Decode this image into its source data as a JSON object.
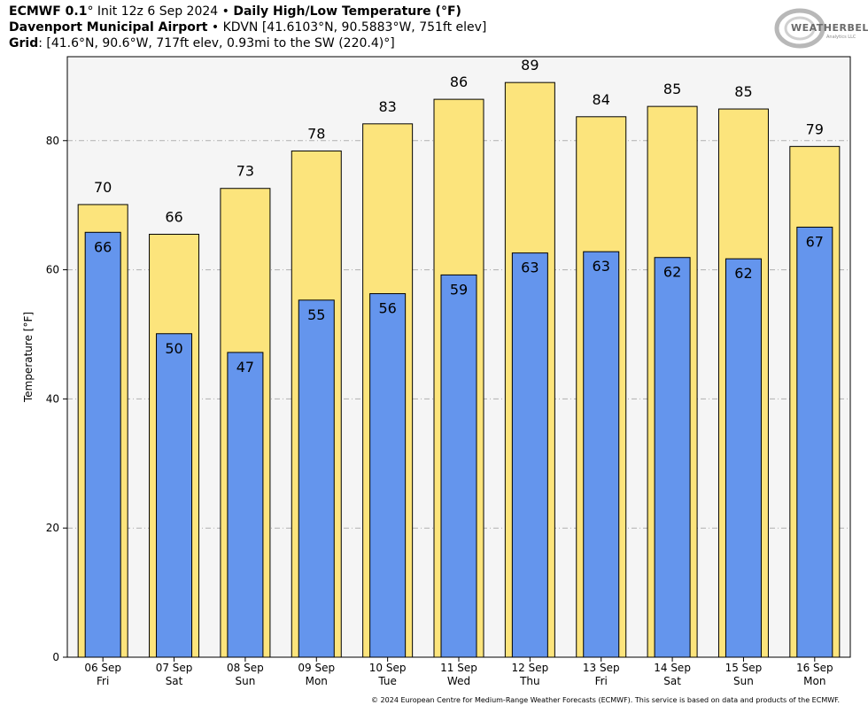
{
  "header": {
    "line1_model": "ECMWF 0.1",
    "line1_deg": "°",
    "line1_init": " Init 12z 6 Sep 2024 • ",
    "line1_title": "Daily High/Low Temperature (°F)",
    "line2_station": "Davenport Municipal Airport",
    "line2_rest": " • KDVN [41.6103°N, 90.5883°W, 751ft elev]",
    "line3_grid": "Grid",
    "line3_rest": ": [41.6°N, 90.6°W, 717ft elev, 0.93mi to the SW (220.4)°]"
  },
  "logo": {
    "text": "WEATHERBELL",
    "subtext": "Analytics LLC",
    "icon": "weatherbell-swirl-logo"
  },
  "copyright": "© 2024 European Centre for Medium-Range Weather Forecasts (ECMWF). This service is based on data and products of the ECMWF.",
  "chart_data": {
    "type": "bar",
    "ylabel": "Temperature [°F]",
    "ylim": [
      0,
      93
    ],
    "yticks": [
      0,
      20,
      40,
      60,
      80
    ],
    "grid": true,
    "categories": [
      "06 Sep",
      "07 Sep",
      "08 Sep",
      "09 Sep",
      "10 Sep",
      "11 Sep",
      "12 Sep",
      "13 Sep",
      "14 Sep",
      "15 Sep",
      "16 Sep"
    ],
    "weekdays": [
      "Fri",
      "Sat",
      "Sun",
      "Mon",
      "Tue",
      "Wed",
      "Thu",
      "Fri",
      "Sat",
      "Sun",
      "Mon"
    ],
    "series": [
      {
        "key": "high",
        "values": [
          70.1,
          65.5,
          72.6,
          78.4,
          82.6,
          86.4,
          89.0,
          83.7,
          85.3,
          84.9,
          79.1
        ],
        "labels": [
          "70",
          "66",
          "73",
          "78",
          "83",
          "86",
          "89",
          "84",
          "85",
          "85",
          "79"
        ],
        "color": "#fce47c"
      },
      {
        "key": "low",
        "values": [
          65.8,
          50.1,
          47.2,
          55.3,
          56.3,
          59.2,
          62.6,
          62.8,
          61.9,
          61.7,
          66.6
        ],
        "labels": [
          "66",
          "50",
          "47",
          "55",
          "56",
          "59",
          "63",
          "63",
          "62",
          "62",
          "67"
        ],
        "color": "#6495ed"
      }
    ],
    "background_color": "#f5f5f5"
  }
}
